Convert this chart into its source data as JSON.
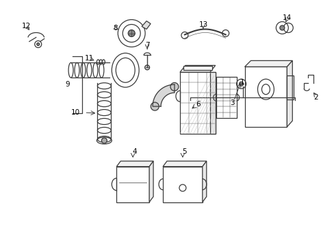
{
  "bg_color": "#ffffff",
  "line_color": "#3a3a3a",
  "label_color": "#000000",
  "label_fontsize": 7.5,
  "fig_width": 4.89,
  "fig_height": 3.6,
  "dpi": 100
}
